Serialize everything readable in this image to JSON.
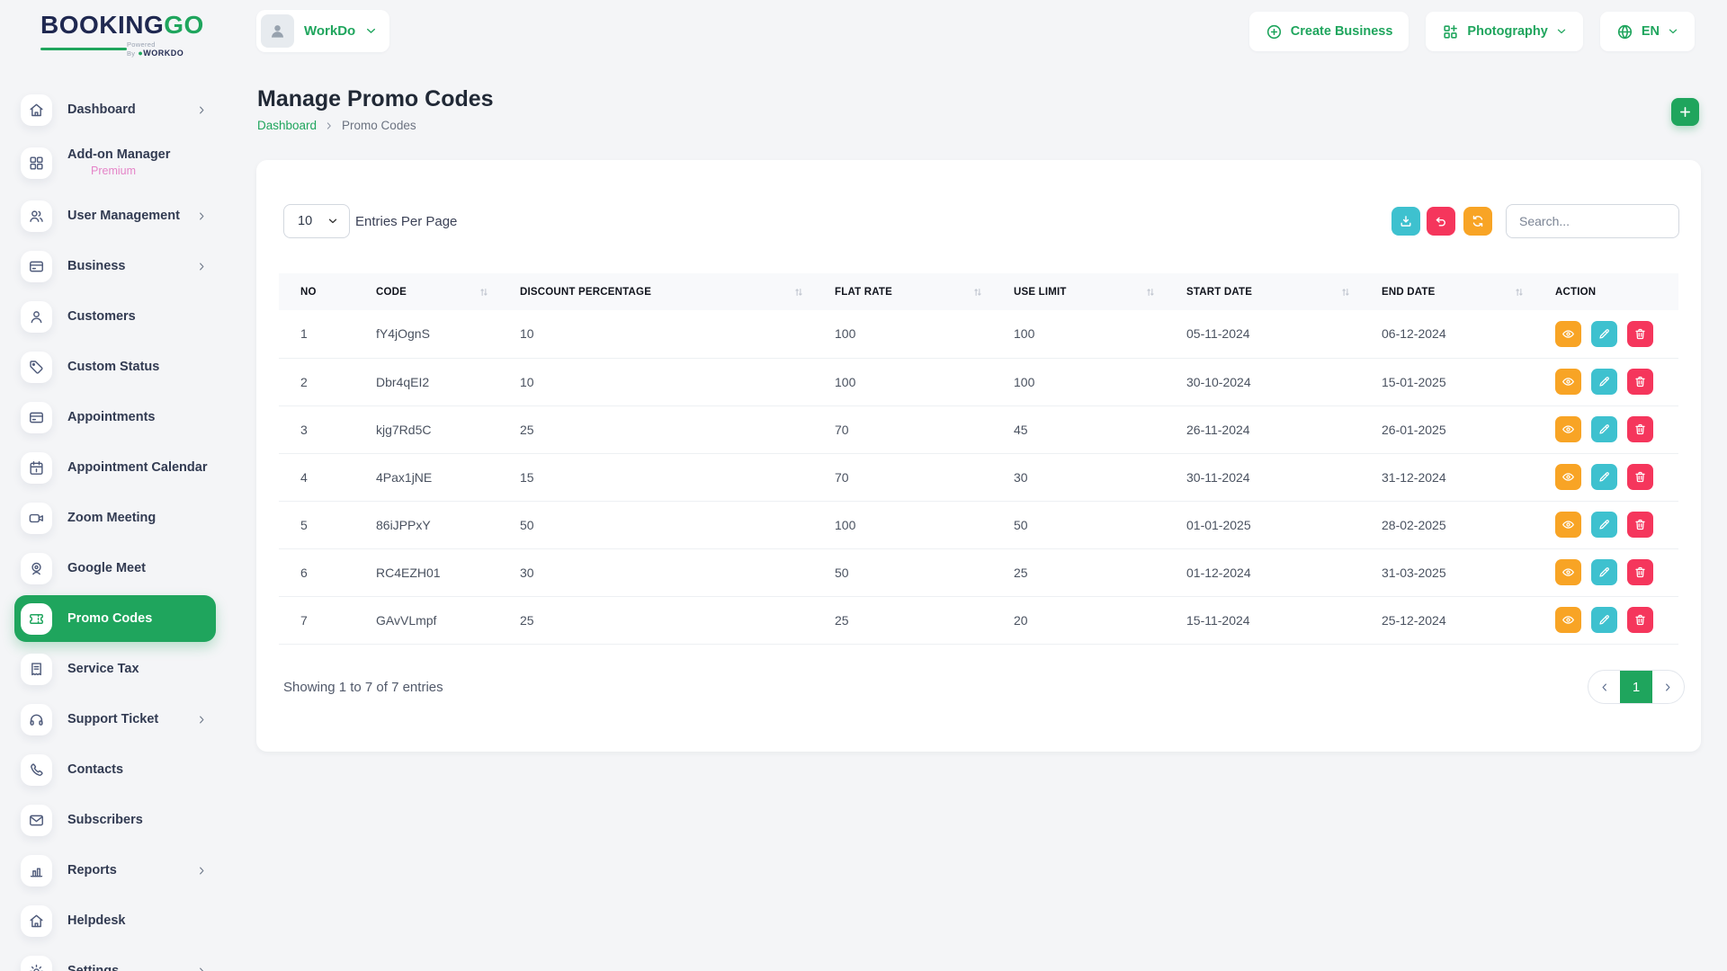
{
  "brand": {
    "name_dark": "BOOKING",
    "name_accent": "GO",
    "powered_by": "Powered By",
    "powered_brand": "WORKDO"
  },
  "header": {
    "workspace_label": "WorkDo",
    "create_business_label": "Create Business",
    "business_type_label": "Photography",
    "language_label": "EN"
  },
  "sidebar": {
    "items": [
      {
        "label": "Dashboard",
        "icon": "home",
        "chevron": true
      },
      {
        "label": "Add-on Manager",
        "badge": "Premium",
        "icon": "grid"
      },
      {
        "label": "User Management",
        "icon": "users",
        "chevron": true
      },
      {
        "label": "Business",
        "icon": "credit-card",
        "chevron": true
      },
      {
        "label": "Customers",
        "icon": "user"
      },
      {
        "label": "Custom Status",
        "icon": "tag"
      },
      {
        "label": "Appointments",
        "icon": "credit-card"
      },
      {
        "label": "Appointment Calendar",
        "icon": "calendar"
      },
      {
        "label": "Zoom Meeting",
        "icon": "video"
      },
      {
        "label": "Google Meet",
        "icon": "webcam"
      },
      {
        "label": "Promo Codes",
        "icon": "ticket",
        "active": true
      },
      {
        "label": "Service Tax",
        "icon": "receipt"
      },
      {
        "label": "Support Ticket",
        "icon": "headphones",
        "chevron": true
      },
      {
        "label": "Contacts",
        "icon": "phone"
      },
      {
        "label": "Subscribers",
        "icon": "mail"
      },
      {
        "label": "Reports",
        "icon": "bar-chart",
        "chevron": true
      },
      {
        "label": "Helpdesk",
        "icon": "home"
      },
      {
        "label": "Settings",
        "icon": "settings",
        "chevron": true
      }
    ]
  },
  "page": {
    "title": "Manage Promo Codes",
    "breadcrumb": [
      "Dashboard",
      "Promo Codes"
    ]
  },
  "toolbar": {
    "entries_value": "10",
    "entries_label": "Entries Per Page",
    "search_placeholder": "Search..."
  },
  "table": {
    "columns": [
      {
        "label": "NO",
        "sortable": false
      },
      {
        "label": "CODE",
        "sortable": true
      },
      {
        "label": "DISCOUNT PERCENTAGE",
        "sortable": true
      },
      {
        "label": "FLAT RATE",
        "sortable": true
      },
      {
        "label": "USE LIMIT",
        "sortable": true
      },
      {
        "label": "START DATE",
        "sortable": true
      },
      {
        "label": "END DATE",
        "sortable": true
      },
      {
        "label": "ACTION",
        "sortable": false
      }
    ],
    "rows": [
      {
        "no": "1",
        "code": "fY4jOgnS",
        "discount": "10",
        "flat_rate": "100",
        "use_limit": "100",
        "start_date": "05-11-2024",
        "end_date": "06-12-2024"
      },
      {
        "no": "2",
        "code": "Dbr4qEI2",
        "discount": "10",
        "flat_rate": "100",
        "use_limit": "100",
        "start_date": "30-10-2024",
        "end_date": "15-01-2025"
      },
      {
        "no": "3",
        "code": "kjg7Rd5C",
        "discount": "25",
        "flat_rate": "70",
        "use_limit": "45",
        "start_date": "26-11-2024",
        "end_date": "26-01-2025"
      },
      {
        "no": "4",
        "code": "4Pax1jNE",
        "discount": "15",
        "flat_rate": "70",
        "use_limit": "30",
        "start_date": "30-11-2024",
        "end_date": "31-12-2024"
      },
      {
        "no": "5",
        "code": "86iJPPxY",
        "discount": "50",
        "flat_rate": "100",
        "use_limit": "50",
        "start_date": "01-01-2025",
        "end_date": "28-02-2025"
      },
      {
        "no": "6",
        "code": "RC4EZH01",
        "discount": "30",
        "flat_rate": "50",
        "use_limit": "25",
        "start_date": "01-12-2024",
        "end_date": "31-03-2025"
      },
      {
        "no": "7",
        "code": "GAvVLmpf",
        "discount": "25",
        "flat_rate": "25",
        "use_limit": "20",
        "start_date": "15-11-2024",
        "end_date": "25-12-2024"
      }
    ]
  },
  "footer": {
    "summary": "Showing 1 to 7 of 7 entries",
    "page": "1"
  },
  "colors": {
    "green": "#1fa55d",
    "teal": "#3ec1cf",
    "pink": "#f5365c",
    "orange": "#f8a425",
    "premium_pink": "#e584c8"
  }
}
